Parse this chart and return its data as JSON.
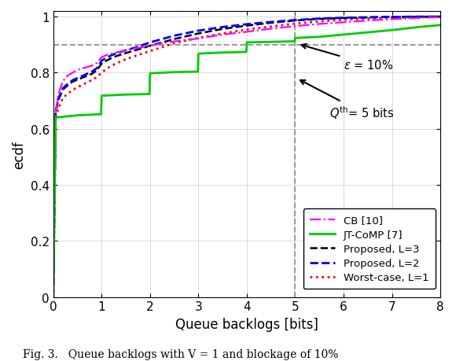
{
  "xlabel": "Queue backlogs [bits]",
  "ylabel": "ecdf",
  "xlim": [
    0,
    8
  ],
  "ylim": [
    0,
    1.02
  ],
  "xticks": [
    0,
    1,
    2,
    3,
    4,
    5,
    6,
    7,
    8
  ],
  "yticks": [
    0,
    0.2,
    0.4,
    0.6,
    0.8,
    1.0
  ],
  "epsilon_line_y": 0.9,
  "qth_line_x": 5.0,
  "caption": "Fig. 3.   Queue backlogs with V = 1 and blockage of 10%",
  "curves": {
    "CB": {
      "color": "#ff00ff",
      "linestyle": "-.",
      "linewidth": 1.6,
      "label": "CB [10]",
      "x": [
        0,
        0.001,
        0.05,
        0.1,
        0.2,
        0.3,
        0.4,
        0.5,
        0.6,
        0.7,
        0.8,
        0.9,
        1.0,
        1.1,
        1.2,
        1.3,
        1.4,
        1.5,
        1.6,
        1.7,
        1.8,
        1.9,
        2.0,
        2.2,
        2.4,
        2.6,
        2.8,
        3.0,
        3.2,
        3.4,
        3.6,
        3.8,
        4.0,
        4.5,
        5.0,
        5.5,
        6.0,
        6.5,
        7.0,
        7.5,
        8.0
      ],
      "y": [
        0,
        0.001,
        0.65,
        0.72,
        0.77,
        0.79,
        0.8,
        0.81,
        0.815,
        0.82,
        0.825,
        0.835,
        0.855,
        0.863,
        0.868,
        0.872,
        0.876,
        0.88,
        0.884,
        0.887,
        0.89,
        0.893,
        0.896,
        0.903,
        0.909,
        0.914,
        0.918,
        0.922,
        0.928,
        0.933,
        0.938,
        0.942,
        0.946,
        0.957,
        0.966,
        0.974,
        0.98,
        0.986,
        0.991,
        0.995,
        0.998
      ]
    },
    "JT": {
      "color": "#00cc00",
      "linestyle": "-",
      "linewidth": 2.0,
      "label": "JT-CoMP [7]",
      "x": [
        0,
        0.001,
        0.05,
        0.5,
        0.99,
        1.0,
        1.5,
        1.99,
        2.0,
        2.5,
        2.99,
        3.0,
        3.5,
        3.99,
        4.0,
        4.5,
        4.99,
        5.0,
        5.5,
        6.0,
        6.5,
        7.0,
        7.5,
        8.0
      ],
      "y": [
        0,
        0.001,
        0.64,
        0.648,
        0.652,
        0.718,
        0.722,
        0.724,
        0.798,
        0.802,
        0.804,
        0.868,
        0.872,
        0.874,
        0.908,
        0.91,
        0.912,
        0.924,
        0.928,
        0.936,
        0.944,
        0.952,
        0.962,
        0.97
      ]
    },
    "Proposed_L3": {
      "color": "#000000",
      "linestyle": "--",
      "linewidth": 1.8,
      "label": "Proposed, L=3",
      "x": [
        0,
        0.001,
        0.05,
        0.1,
        0.2,
        0.3,
        0.4,
        0.5,
        0.6,
        0.7,
        0.8,
        0.9,
        1.0,
        1.1,
        1.2,
        1.3,
        1.5,
        1.7,
        2.0,
        2.5,
        3.0,
        3.5,
        4.0,
        4.5,
        5.0,
        5.5,
        6.0,
        6.5,
        7.0,
        7.5,
        8.0
      ],
      "y": [
        0,
        0.001,
        0.655,
        0.7,
        0.74,
        0.755,
        0.768,
        0.775,
        0.782,
        0.789,
        0.796,
        0.808,
        0.833,
        0.843,
        0.852,
        0.859,
        0.87,
        0.88,
        0.896,
        0.92,
        0.94,
        0.956,
        0.968,
        0.978,
        0.986,
        0.992,
        0.995,
        0.997,
        0.999,
        0.9995,
        1.0
      ]
    },
    "Proposed_L2": {
      "color": "#0000ff",
      "linestyle": "--",
      "linewidth": 2.0,
      "label": "Proposed, L=2",
      "x": [
        0,
        0.001,
        0.05,
        0.1,
        0.2,
        0.3,
        0.4,
        0.5,
        0.6,
        0.7,
        0.8,
        0.9,
        1.0,
        1.1,
        1.2,
        1.3,
        1.5,
        1.7,
        2.0,
        2.5,
        3.0,
        3.5,
        4.0,
        4.5,
        5.0,
        5.5,
        6.0,
        6.5,
        7.0,
        7.5,
        8.0
      ],
      "y": [
        0,
        0.001,
        0.66,
        0.705,
        0.745,
        0.76,
        0.773,
        0.781,
        0.788,
        0.796,
        0.804,
        0.816,
        0.843,
        0.853,
        0.862,
        0.869,
        0.88,
        0.89,
        0.908,
        0.932,
        0.95,
        0.963,
        0.973,
        0.981,
        0.988,
        0.993,
        0.996,
        0.998,
        0.999,
        1.0,
        1.0
      ]
    },
    "Worst_L1": {
      "color": "#ff0000",
      "linestyle": ":",
      "linewidth": 2.0,
      "label": "Worst-case, L=1",
      "x": [
        0,
        0.001,
        0.05,
        0.1,
        0.2,
        0.3,
        0.4,
        0.5,
        0.6,
        0.7,
        0.8,
        0.9,
        1.0,
        1.1,
        1.2,
        1.3,
        1.5,
        1.7,
        2.0,
        2.5,
        3.0,
        3.5,
        4.0,
        4.5,
        5.0,
        5.5,
        6.0,
        6.5,
        7.0,
        7.5,
        8.0
      ],
      "y": [
        0,
        0.001,
        0.63,
        0.67,
        0.71,
        0.725,
        0.738,
        0.748,
        0.757,
        0.765,
        0.774,
        0.784,
        0.8,
        0.813,
        0.824,
        0.833,
        0.848,
        0.86,
        0.877,
        0.905,
        0.924,
        0.94,
        0.954,
        0.965,
        0.975,
        0.983,
        0.989,
        0.993,
        0.996,
        0.998,
        1.0
      ]
    }
  }
}
